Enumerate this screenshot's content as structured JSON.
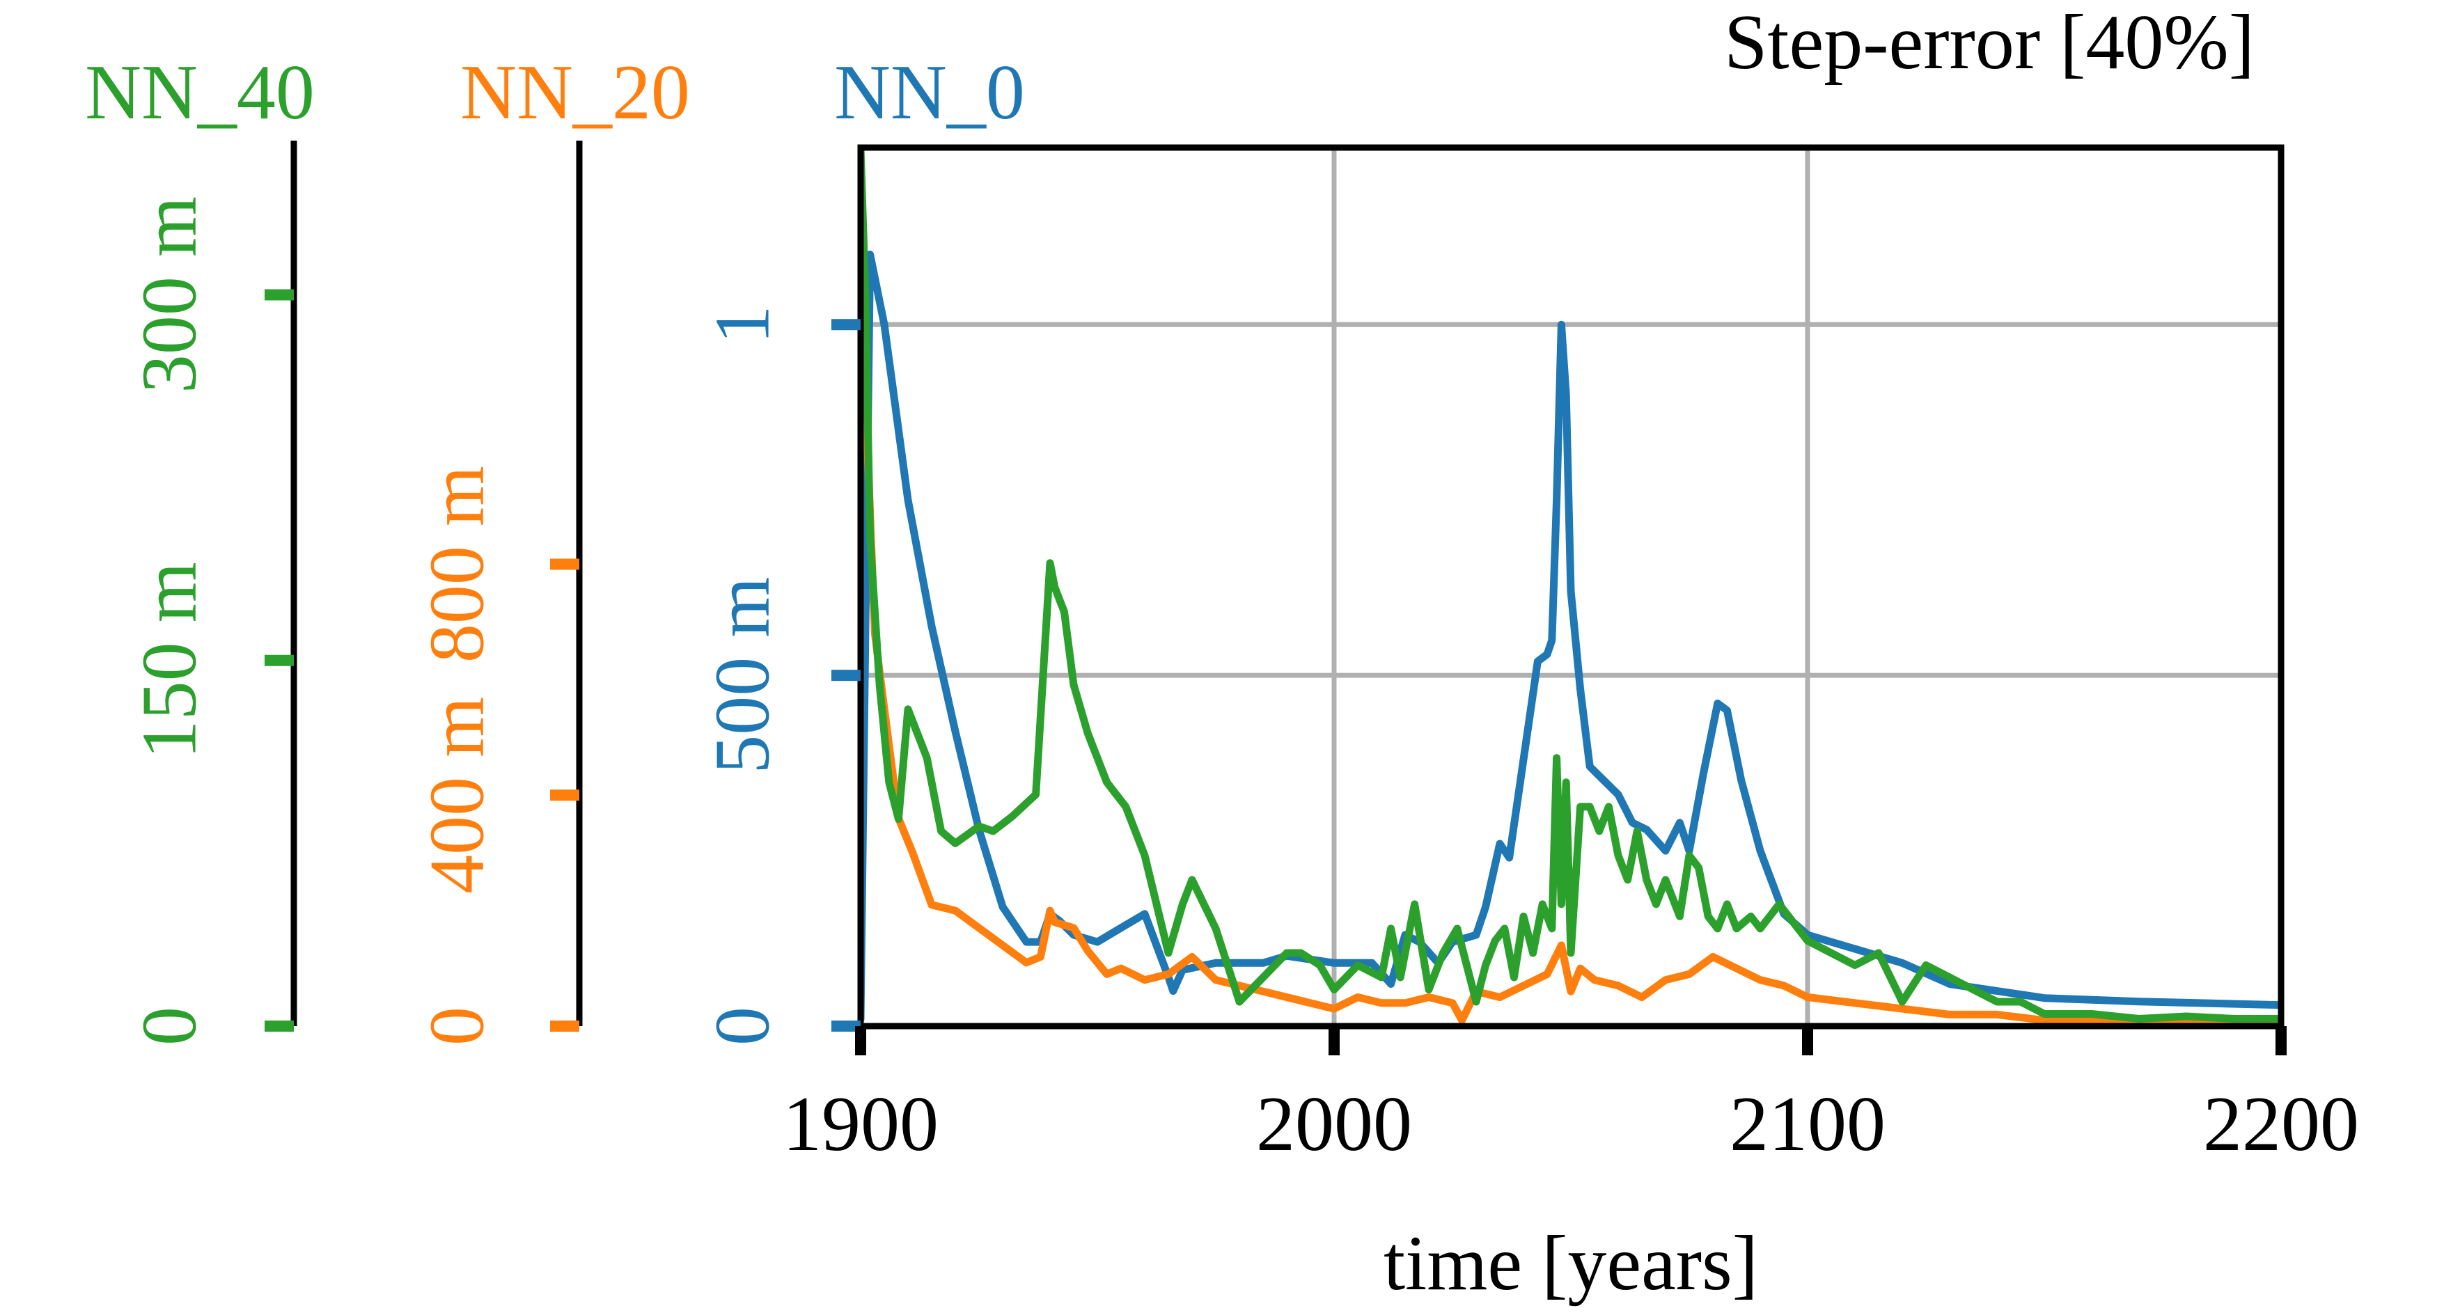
{
  "chart_data": {
    "type": "line",
    "title": "Step-error [40%]",
    "xlabel": "time [years]",
    "xlim": [
      1900,
      2200
    ],
    "x_ticks": [
      "1900",
      "2000",
      "2100",
      "2200"
    ],
    "grid": true,
    "axes": [
      {
        "name": "NN_40",
        "color": "#2ca02c",
        "ylim": [
          0,
          0.3604
        ],
        "tick_values": [
          0,
          0.15,
          0.3
        ],
        "tick_labels": [
          "0",
          "150 m",
          "300 m"
        ]
      },
      {
        "name": "NN_20",
        "color": "#ff7f0e",
        "ylim": [
          0,
          1.5217
        ],
        "tick_values": [
          0,
          0.4,
          0.8
        ],
        "tick_labels": [
          "0",
          "400 m",
          "800 m"
        ]
      },
      {
        "name": "NN_0",
        "color": "#1f77b4",
        "ylim": [
          0,
          1.2523
        ],
        "tick_values": [
          0,
          0.5,
          1
        ],
        "tick_labels": [
          "0",
          "500 m",
          "1"
        ]
      }
    ],
    "series": [
      {
        "name": "NN_0",
        "axis": 2,
        "color": "#1f77b4",
        "x": [
          1900,
          1902,
          1905,
          1910,
          1915,
          1920,
          1925,
          1930,
          1935,
          1938,
          1940,
          1942,
          1945,
          1950,
          1955,
          1960,
          1965,
          1966,
          1968,
          1975,
          1985,
          1990,
          2000,
          2008,
          2012,
          2015,
          2018,
          2022,
          2025,
          2030,
          2032,
          2035,
          2037,
          2040,
          2043,
          2045,
          2046,
          2047,
          2048,
          2049,
          2050,
          2051,
          2052,
          2054,
          2057,
          2060,
          2063,
          2066,
          2070,
          2073,
          2075,
          2078,
          2081,
          2083,
          2086,
          2090,
          2095,
          2100,
          2110,
          2120,
          2130,
          2140,
          2150,
          2170,
          2200
        ],
        "y": [
          0.01,
          1.1,
          1.0,
          0.75,
          0.57,
          0.42,
          0.28,
          0.17,
          0.12,
          0.12,
          0.16,
          0.15,
          0.13,
          0.12,
          0.14,
          0.16,
          0.07,
          0.05,
          0.08,
          0.09,
          0.09,
          0.1,
          0.09,
          0.09,
          0.06,
          0.13,
          0.12,
          0.09,
          0.12,
          0.13,
          0.17,
          0.26,
          0.24,
          0.38,
          0.52,
          0.53,
          0.55,
          0.75,
          1.0,
          0.9,
          0.62,
          0.55,
          0.48,
          0.37,
          0.35,
          0.33,
          0.29,
          0.28,
          0.25,
          0.29,
          0.25,
          0.36,
          0.46,
          0.45,
          0.35,
          0.25,
          0.16,
          0.13,
          0.11,
          0.09,
          0.06,
          0.05,
          0.04,
          0.035,
          0.03
        ]
      },
      {
        "name": "NN_20",
        "axis": 1,
        "color": "#ff7f0e",
        "x": [
          1900,
          1901,
          1903,
          1905,
          1908,
          1911,
          1915,
          1920,
          1925,
          1930,
          1935,
          1938,
          1940,
          1941,
          1945,
          1948,
          1952,
          1955,
          1960,
          1965,
          1970,
          1975,
          1980,
          1985,
          1990,
          1995,
          2000,
          2005,
          2010,
          2015,
          2020,
          2025,
          2027,
          2030,
          2035,
          2040,
          2045,
          2048,
          2050,
          2052,
          2055,
          2060,
          2065,
          2070,
          2075,
          2080,
          2085,
          2090,
          2095,
          2100,
          2110,
          2120,
          2130,
          2140,
          2150,
          2170,
          2200
        ],
        "y": [
          1.5,
          1.1,
          0.68,
          0.55,
          0.36,
          0.3,
          0.21,
          0.2,
          0.17,
          0.14,
          0.11,
          0.12,
          0.2,
          0.18,
          0.17,
          0.13,
          0.09,
          0.1,
          0.08,
          0.09,
          0.12,
          0.08,
          0.07,
          0.06,
          0.05,
          0.04,
          0.03,
          0.05,
          0.04,
          0.04,
          0.05,
          0.04,
          0.01,
          0.06,
          0.05,
          0.07,
          0.09,
          0.14,
          0.06,
          0.1,
          0.08,
          0.07,
          0.05,
          0.08,
          0.09,
          0.12,
          0.1,
          0.08,
          0.07,
          0.05,
          0.04,
          0.03,
          0.02,
          0.02,
          0.01,
          0.01,
          0.01
        ]
      },
      {
        "name": "NN_40",
        "axis": 0,
        "color": "#2ca02c",
        "x": [
          1900,
          1901,
          1902,
          1904,
          1906,
          1908,
          1910,
          1912,
          1914,
          1917,
          1920,
          1925,
          1928,
          1932,
          1937,
          1940,
          1941,
          1943,
          1945,
          1948,
          1952,
          1956,
          1960,
          1965,
          1968,
          1970,
          1975,
          1980,
          1985,
          1990,
          1993,
          1997,
          2000,
          2005,
          2010,
          2012,
          2014,
          2017,
          2020,
          2023,
          2026,
          2030,
          2032,
          2034,
          2036,
          2038,
          2040,
          2042,
          2044,
          2046,
          2047,
          2048,
          2049,
          2050,
          2052,
          2054,
          2056,
          2058,
          2060,
          2062,
          2064,
          2066,
          2068,
          2070,
          2073,
          2075,
          2077,
          2079,
          2081,
          2083,
          2085,
          2088,
          2090,
          2094,
          2098,
          2100,
          2105,
          2110,
          2115,
          2120,
          2125,
          2130,
          2135,
          2140,
          2145,
          2150,
          2160,
          2170,
          2180,
          2190,
          2200
        ],
        "y": [
          0.36,
          0.3,
          0.2,
          0.14,
          0.1,
          0.085,
          0.13,
          0.12,
          0.11,
          0.08,
          0.075,
          0.082,
          0.08,
          0.086,
          0.095,
          0.19,
          0.18,
          0.17,
          0.14,
          0.12,
          0.1,
          0.09,
          0.07,
          0.03,
          0.05,
          0.06,
          0.04,
          0.01,
          0.02,
          0.03,
          0.03,
          0.025,
          0.015,
          0.025,
          0.02,
          0.04,
          0.02,
          0.05,
          0.015,
          0.03,
          0.04,
          0.01,
          0.025,
          0.035,
          0.04,
          0.02,
          0.045,
          0.03,
          0.05,
          0.04,
          0.11,
          0.05,
          0.1,
          0.03,
          0.09,
          0.09,
          0.08,
          0.09,
          0.07,
          0.06,
          0.08,
          0.06,
          0.05,
          0.06,
          0.045,
          0.07,
          0.065,
          0.045,
          0.04,
          0.05,
          0.04,
          0.045,
          0.04,
          0.05,
          0.04,
          0.035,
          0.03,
          0.025,
          0.03,
          0.01,
          0.025,
          0.02,
          0.015,
          0.01,
          0.01,
          0.005,
          0.005,
          0.003,
          0.004,
          0.003,
          0.003
        ]
      }
    ]
  }
}
